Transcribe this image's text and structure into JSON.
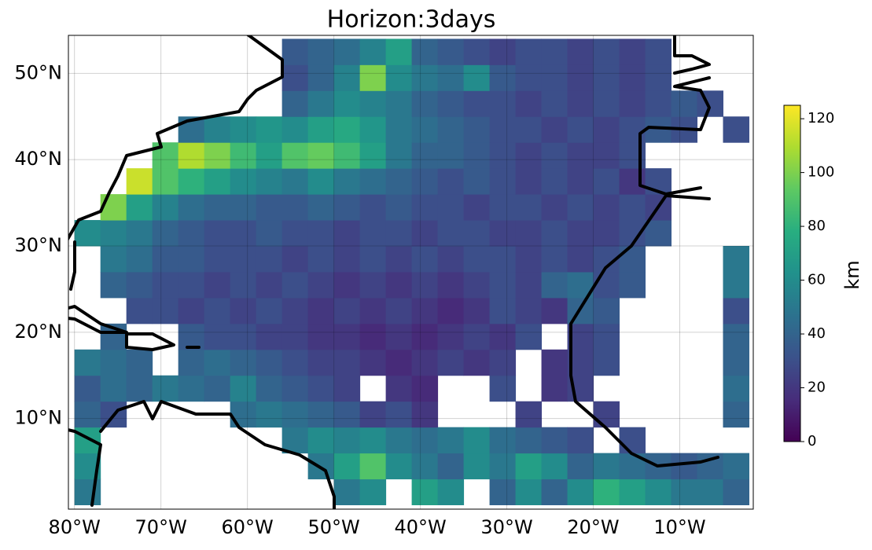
{
  "chart_data": {
    "type": "heatmap",
    "title": "Horizon:3days",
    "colormap": "viridis",
    "lon_bins": [
      -80,
      -77,
      -74,
      -71,
      -68,
      -65,
      -62,
      -59,
      -56,
      -53,
      -50,
      -47,
      -44,
      -41,
      -38,
      -35,
      -32,
      -29,
      -26,
      -23,
      -20,
      -17,
      -14,
      -11,
      -8,
      -5,
      -2
    ],
    "lat_bins": [
      0,
      3,
      6,
      9,
      12,
      15,
      18,
      21,
      24,
      27,
      30,
      33,
      36,
      39,
      42,
      45,
      48,
      51,
      54
    ],
    "values": [
      [
        50,
        null,
        null,
        null,
        null,
        null,
        null,
        null,
        null,
        null,
        50,
        60,
        null,
        70,
        60,
        null,
        40,
        60,
        40,
        60,
        80,
        70,
        60,
        50,
        50,
        40
      ],
      [
        60,
        null,
        null,
        null,
        null,
        null,
        null,
        null,
        null,
        50,
        70,
        90,
        60,
        50,
        40,
        60,
        50,
        70,
        60,
        40,
        50,
        45,
        40,
        35,
        40,
        45
      ],
      [
        70,
        null,
        null,
        null,
        null,
        null,
        null,
        null,
        50,
        60,
        55,
        60,
        50,
        45,
        50,
        60,
        45,
        40,
        35,
        30,
        null,
        30,
        null,
        null,
        null,
        null
      ],
      [
        40,
        30,
        null,
        null,
        null,
        null,
        45,
        50,
        45,
        40,
        35,
        25,
        30,
        20,
        null,
        null,
        null,
        25,
        null,
        null,
        25,
        null,
        null,
        null,
        null,
        40
      ],
      [
        35,
        45,
        40,
        50,
        45,
        40,
        55,
        40,
        35,
        30,
        25,
        null,
        20,
        15,
        null,
        null,
        30,
        null,
        20,
        25,
        null,
        null,
        null,
        null,
        null,
        45
      ],
      [
        50,
        45,
        40,
        null,
        40,
        45,
        40,
        35,
        30,
        25,
        25,
        20,
        15,
        20,
        25,
        20,
        25,
        null,
        20,
        25,
        30,
        null,
        null,
        null,
        null,
        40
      ],
      [
        null,
        40,
        null,
        null,
        35,
        30,
        30,
        25,
        25,
        20,
        20,
        15,
        20,
        15,
        20,
        25,
        20,
        30,
        null,
        25,
        30,
        null,
        null,
        null,
        null,
        40
      ],
      [
        null,
        null,
        30,
        30,
        25,
        30,
        25,
        30,
        25,
        20,
        25,
        20,
        25,
        20,
        15,
        20,
        30,
        25,
        20,
        40,
        35,
        null,
        null,
        null,
        null,
        30
      ],
      [
        null,
        40,
        35,
        30,
        30,
        25,
        30,
        25,
        30,
        25,
        20,
        25,
        20,
        25,
        20,
        25,
        30,
        25,
        40,
        45,
        30,
        35,
        null,
        null,
        null,
        50
      ],
      [
        null,
        50,
        45,
        35,
        35,
        30,
        30,
        30,
        25,
        30,
        25,
        30,
        25,
        30,
        25,
        30,
        30,
        25,
        30,
        25,
        30,
        35,
        null,
        null,
        null,
        50
      ],
      [
        60,
        55,
        50,
        40,
        35,
        30,
        30,
        35,
        30,
        30,
        25,
        30,
        30,
        25,
        30,
        30,
        25,
        25,
        30,
        25,
        25,
        30,
        35,
        null,
        null,
        null
      ],
      [
        null,
        100,
        70,
        55,
        45,
        40,
        40,
        35,
        35,
        40,
        35,
        30,
        35,
        30,
        30,
        25,
        30,
        30,
        25,
        30,
        25,
        30,
        25,
        null,
        null,
        null
      ],
      [
        null,
        null,
        115,
        90,
        80,
        70,
        60,
        55,
        50,
        60,
        50,
        45,
        40,
        35,
        30,
        35,
        30,
        25,
        30,
        25,
        30,
        20,
        30,
        null,
        null,
        null
      ],
      [
        null,
        null,
        null,
        90,
        110,
        100,
        85,
        70,
        90,
        95,
        85,
        70,
        50,
        40,
        40,
        35,
        30,
        25,
        30,
        25,
        25,
        30,
        null,
        null,
        null,
        null
      ],
      [
        null,
        null,
        null,
        null,
        45,
        55,
        60,
        65,
        60,
        70,
        75,
        65,
        50,
        45,
        40,
        35,
        30,
        30,
        25,
        30,
        25,
        30,
        35,
        30,
        null,
        30
      ],
      [
        null,
        null,
        null,
        null,
        null,
        null,
        null,
        null,
        40,
        50,
        60,
        55,
        50,
        40,
        35,
        30,
        30,
        25,
        30,
        25,
        30,
        25,
        30,
        35,
        30,
        null
      ],
      [
        null,
        null,
        null,
        null,
        null,
        null,
        null,
        null,
        30,
        40,
        55,
        100,
        60,
        50,
        45,
        60,
        35,
        30,
        30,
        25,
        30,
        25,
        30,
        null,
        null,
        null
      ],
      [
        null,
        null,
        null,
        null,
        null,
        null,
        null,
        null,
        35,
        40,
        45,
        55,
        70,
        40,
        35,
        30,
        25,
        30,
        30,
        25,
        30,
        25,
        30,
        null,
        null,
        null
      ]
    ],
    "xlim": [
      -80.7,
      -1.5
    ],
    "ylim": [
      -0.5,
      54.4
    ],
    "xticks": [
      {
        "value": -80,
        "label": "80°W"
      },
      {
        "value": -70,
        "label": "70°W"
      },
      {
        "value": -60,
        "label": "60°W"
      },
      {
        "value": -50,
        "label": "50°W"
      },
      {
        "value": -40,
        "label": "40°W"
      },
      {
        "value": -30,
        "label": "30°W"
      },
      {
        "value": -20,
        "label": "20°W"
      },
      {
        "value": -10,
        "label": "10°W"
      }
    ],
    "yticks": [
      {
        "value": 10,
        "label": "10°N"
      },
      {
        "value": 20,
        "label": "20°N"
      },
      {
        "value": 30,
        "label": "30°N"
      },
      {
        "value": 40,
        "label": "40°N"
      },
      {
        "value": 50,
        "label": "50°N"
      }
    ],
    "grid": true,
    "colorbar": {
      "label": "km",
      "clim": [
        0,
        125
      ],
      "ticks": [
        0,
        20,
        40,
        60,
        80,
        100,
        120
      ]
    }
  }
}
